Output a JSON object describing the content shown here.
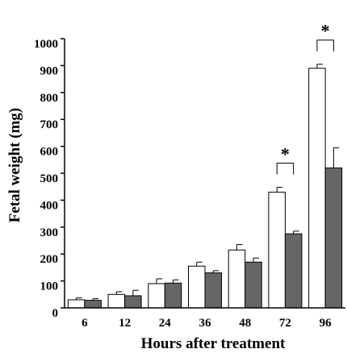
{
  "chart_data": {
    "type": "bar",
    "xlabel": "Hours after treatment",
    "ylabel": "Fetal weight (mg)",
    "categories": [
      "6",
      "12",
      "24",
      "36",
      "48",
      "72",
      "96"
    ],
    "ylim": [
      0,
      1000
    ],
    "yticks": [
      0,
      100,
      200,
      300,
      400,
      500,
      600,
      700,
      800,
      900,
      1000
    ],
    "series": [
      {
        "color": "#ffffff",
        "values": [
          30,
          50,
          90,
          155,
          215,
          430,
          890
        ],
        "errors": [
          7,
          10,
          18,
          15,
          20,
          18,
          15
        ]
      },
      {
        "color": "#666666",
        "values": [
          28,
          45,
          92,
          130,
          170,
          275,
          520
        ],
        "errors": [
          6,
          20,
          12,
          8,
          15,
          10,
          75
        ]
      }
    ],
    "significance": [
      {
        "category": "72",
        "label": "*"
      },
      {
        "category": "96",
        "label": "*"
      }
    ],
    "grid": false,
    "legend": "none"
  }
}
